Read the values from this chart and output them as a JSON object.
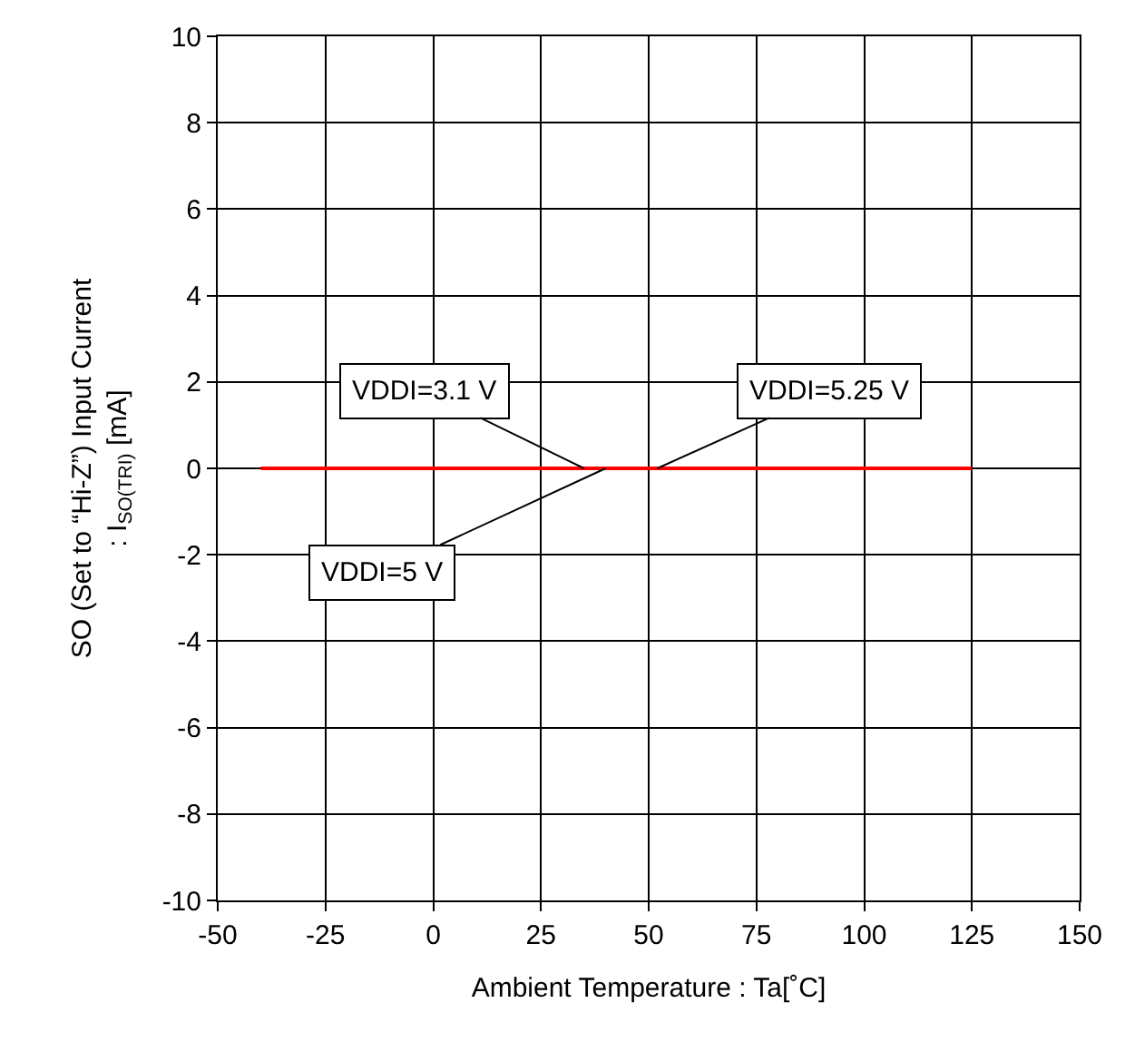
{
  "chart_data": {
    "type": "line",
    "xlabel": "Ambient Temperature : Ta[˚C]",
    "ylabel": "SO (Set to “Hi-Z”) Input Current\n: I$_{SO(TRI)}$ [mA]",
    "x": [
      -40,
      125
    ],
    "series": [
      {
        "color": "#ff0000",
        "values": [
          0,
          0
        ]
      }
    ],
    "xlim": [
      -50,
      150
    ],
    "xticks": [
      -50,
      -25,
      0,
      25,
      50,
      75,
      100,
      125,
      150
    ],
    "ylim": [
      -10,
      10
    ],
    "yticks": [
      -10,
      -8,
      -6,
      -4,
      -2,
      0,
      2,
      4,
      6,
      8,
      10
    ],
    "grid": true,
    "marker": "none",
    "line_style": "solid",
    "annotations": [
      {
        "text": "VDDI=3.1 V",
        "x": 35,
        "y": 0
      },
      {
        "text": "VDDI=5 V",
        "x": 40,
        "y": 0
      },
      {
        "text": "VDDI=5.25 V",
        "x": 52,
        "y": 0
      }
    ]
  }
}
